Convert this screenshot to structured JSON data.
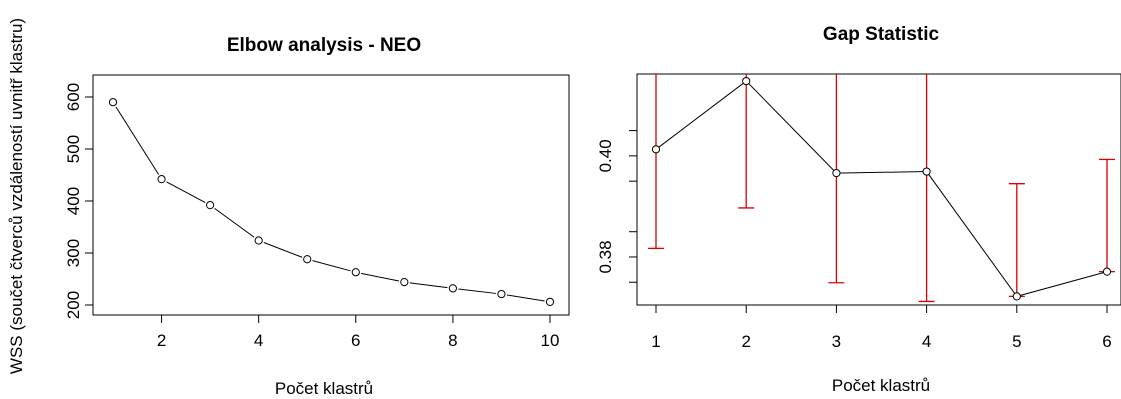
{
  "chart_data": [
    {
      "type": "line",
      "title": "Elbow analysis - NEO",
      "xlabel": "Počet klastrů",
      "ylabel": "WSS (součet čtverců vzdáleností uvnitř klastru)",
      "x": [
        1,
        2,
        3,
        4,
        5,
        6,
        7,
        8,
        9,
        10
      ],
      "y": [
        590,
        442,
        392,
        324,
        288,
        263,
        244,
        232,
        221,
        206
      ],
      "xlim": [
        1,
        10
      ],
      "ylim": [
        200,
        600
      ],
      "xticks": [
        "2",
        "4",
        "6",
        "8",
        "10"
      ],
      "yticks": [
        "200",
        "300",
        "400",
        "500",
        "600"
      ],
      "grid": false,
      "legend": "none",
      "colors": {
        "line": "#000000",
        "points": "#000000"
      }
    },
    {
      "type": "line",
      "title": "Gap Statistic",
      "xlabel": "Počet klastrů",
      "ylabel": "",
      "x": [
        1,
        2,
        3,
        4,
        5,
        6
      ],
      "y": [
        0.4013,
        0.4148,
        0.3966,
        0.3969,
        0.3722,
        0.3771
      ],
      "error_lower": [
        0.3817,
        0.3897,
        0.3749,
        0.3712,
        0.3722,
        0.3771
      ],
      "error_upper": [
        0.4213,
        0.4233,
        0.4183,
        0.4226,
        0.3945,
        0.3993
      ],
      "xlim": [
        1,
        6
      ],
      "ylim": [
        0.3705,
        0.4162
      ],
      "xticks": [
        "1",
        "2",
        "3",
        "4",
        "5",
        "6"
      ],
      "yticks": [
        "0.38",
        "0.40"
      ],
      "grid": false,
      "legend": "none",
      "colors": {
        "line": "#000000",
        "points": "#000000",
        "errorbars": "#dd0000"
      }
    }
  ]
}
